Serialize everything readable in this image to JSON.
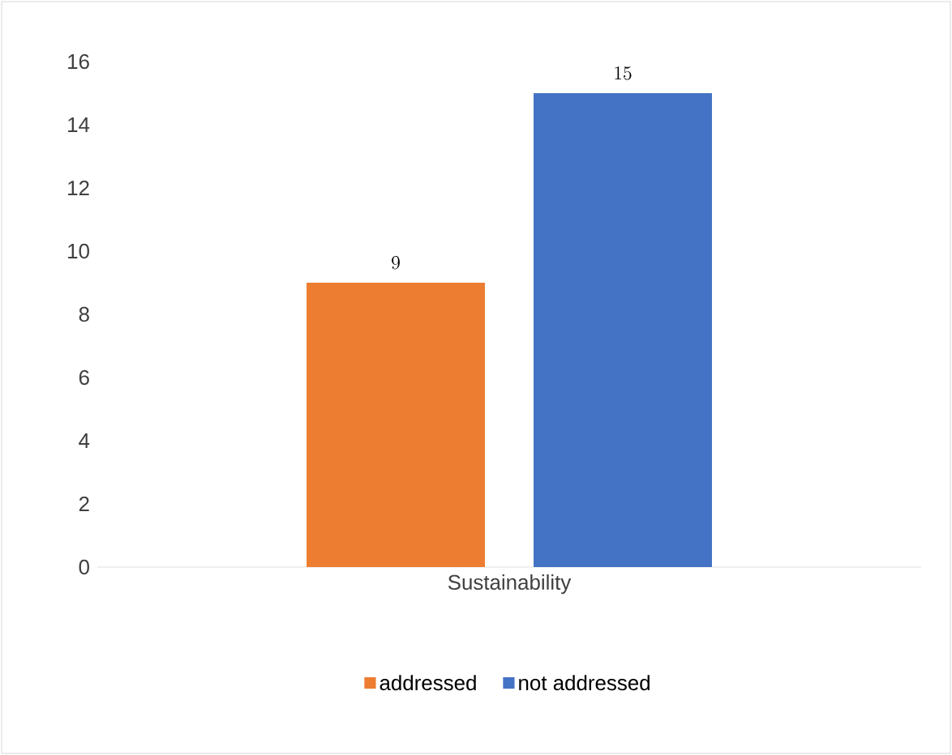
{
  "chart_data": {
    "type": "bar",
    "categories": [
      "Sustainability"
    ],
    "series": [
      {
        "name": "addressed",
        "color": "#ed7d31",
        "values": [
          9
        ]
      },
      {
        "name": "not addressed",
        "color": "#4472c4",
        "values": [
          15
        ]
      }
    ],
    "ylim": [
      0,
      16
    ],
    "yticks": [
      0,
      2,
      4,
      6,
      8,
      10,
      12,
      14,
      16
    ],
    "grid": false,
    "legend": "bottom",
    "data_labels": true
  }
}
